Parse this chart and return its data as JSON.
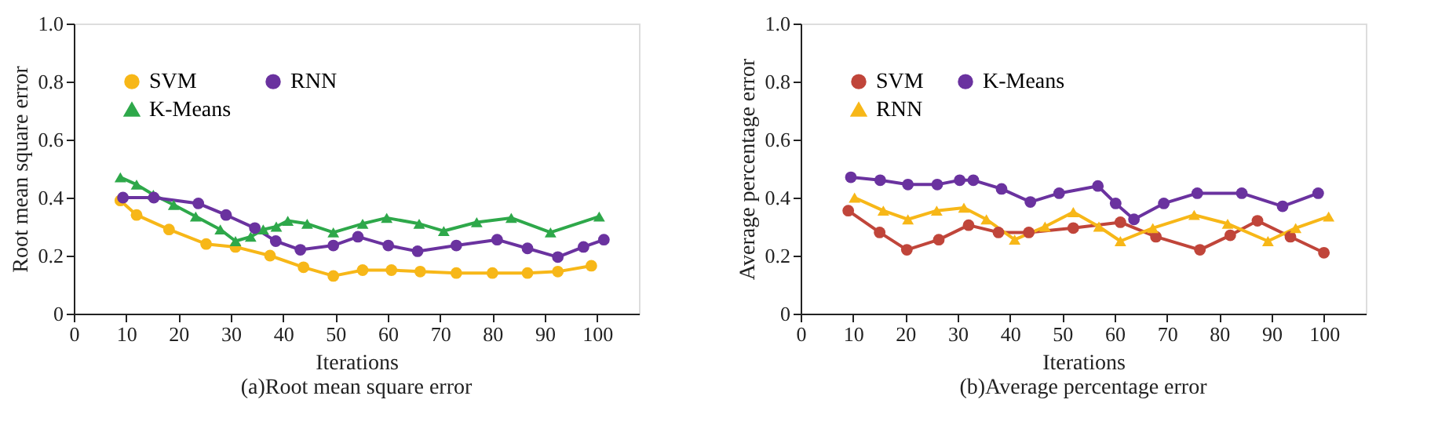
{
  "chart_data": [
    {
      "type": "line",
      "xlabel": "Iterations",
      "ylabel": "Root mean square error",
      "annotations": [
        "(a)Root mean square error"
      ],
      "xlim": [
        0,
        108
      ],
      "xticks": [
        0,
        10,
        20,
        30,
        40,
        50,
        60,
        70,
        80,
        90,
        100
      ],
      "ylim": [
        0,
        1
      ],
      "yticks": [
        0,
        0.2,
        0.4,
        0.6,
        0.8,
        {
          "value": 1,
          "label": "1.0"
        }
      ],
      "grid": false,
      "legend": "top left",
      "series": [
        {
          "name": "SVM",
          "color": "#f7b718",
          "marker": "circle",
          "x": [
            8.9,
            12,
            18.2,
            25.3,
            30.9,
            37.5,
            43.9,
            49.6,
            55.2,
            60.7,
            66.2,
            73.1,
            80,
            86.7,
            92.5,
            98.9
          ],
          "values": [
            0.39,
            0.34,
            0.29,
            0.24,
            0.23,
            0.2,
            0.16,
            0.13,
            0.15,
            0.15,
            0.145,
            0.14,
            0.14,
            0.14,
            0.145,
            0.165
          ]
        },
        {
          "name": "K-Means",
          "color": "#2ea84a",
          "marker": "triangle",
          "x": [
            8.9,
            12,
            15.2,
            19.1,
            23.3,
            28,
            30.9,
            33.8,
            36.2,
            38.7,
            40.9,
            44.6,
            49.6,
            55.2,
            59.8,
            66,
            70.7,
            77,
            83.6,
            91.1,
            100.4
          ],
          "values": [
            0.47,
            0.445,
            0.41,
            0.375,
            0.335,
            0.29,
            0.25,
            0.265,
            0.29,
            0.3,
            0.32,
            0.31,
            0.28,
            0.31,
            0.33,
            0.31,
            0.285,
            0.315,
            0.33,
            0.28,
            0.335
          ]
        },
        {
          "name": "RNN",
          "color": "#6a329f",
          "marker": "circle",
          "x": [
            9.4,
            15.3,
            23.8,
            29.1,
            34.6,
            38.6,
            43.3,
            49.6,
            54.3,
            60.1,
            65.7,
            73.1,
            80.9,
            86.7,
            92.5,
            97.4,
            101.3
          ],
          "values": [
            0.4,
            0.4,
            0.38,
            0.34,
            0.295,
            0.25,
            0.22,
            0.235,
            0.265,
            0.235,
            0.215,
            0.235,
            0.255,
            0.225,
            0.195,
            0.23,
            0.255
          ]
        }
      ]
    },
    {
      "type": "line",
      "xlabel": "Iterations",
      "ylabel": "Average percentage error",
      "annotations": [
        "(b)Average percentage error"
      ],
      "xlim": [
        0,
        108
      ],
      "xticks": [
        0,
        10,
        20,
        30,
        40,
        50,
        60,
        70,
        80,
        90,
        100
      ],
      "ylim": [
        0,
        1
      ],
      "yticks": [
        0,
        0.2,
        0.4,
        0.6,
        0.8,
        {
          "value": 1,
          "label": "1.0"
        }
      ],
      "grid": false,
      "legend": "top left",
      "series": [
        {
          "name": "SVM",
          "color": "#c0453a",
          "marker": "circle",
          "x": [
            9.1,
            15.1,
            20.3,
            26.4,
            32.1,
            37.8,
            43.6,
            52.1,
            61.1,
            67.9,
            76.3,
            82.1,
            87.3,
            93.6,
            100
          ],
          "values": [
            0.355,
            0.28,
            0.22,
            0.255,
            0.305,
            0.28,
            0.28,
            0.295,
            0.315,
            0.265,
            0.22,
            0.27,
            0.32,
            0.265,
            0.21
          ]
        },
        {
          "name": "RNN",
          "color": "#f7b718",
          "marker": "triangle",
          "x": [
            10.3,
            15.8,
            20.5,
            26,
            31.2,
            35.5,
            40.9,
            46.7,
            52.1,
            57,
            61.1,
            67.3,
            75.2,
            81.6,
            89.3,
            94.6,
            100.9
          ],
          "values": [
            0.4,
            0.355,
            0.325,
            0.355,
            0.365,
            0.325,
            0.255,
            0.3,
            0.35,
            0.3,
            0.25,
            0.295,
            0.34,
            0.31,
            0.25,
            0.295,
            0.335
          ]
        },
        {
          "name": "K-Means",
          "color": "#6a329f",
          "marker": "circle",
          "x": [
            9.6,
            15.2,
            20.5,
            26.1,
            30.4,
            33,
            38.4,
            43.9,
            49.4,
            56.8,
            60.2,
            63.7,
            69.4,
            75.8,
            84.3,
            92.1,
            98.9
          ],
          "values": [
            0.47,
            0.46,
            0.445,
            0.445,
            0.46,
            0.46,
            0.43,
            0.385,
            0.415,
            0.44,
            0.38,
            0.325,
            0.38,
            0.415,
            0.415,
            0.37,
            0.415
          ]
        }
      ]
    }
  ]
}
